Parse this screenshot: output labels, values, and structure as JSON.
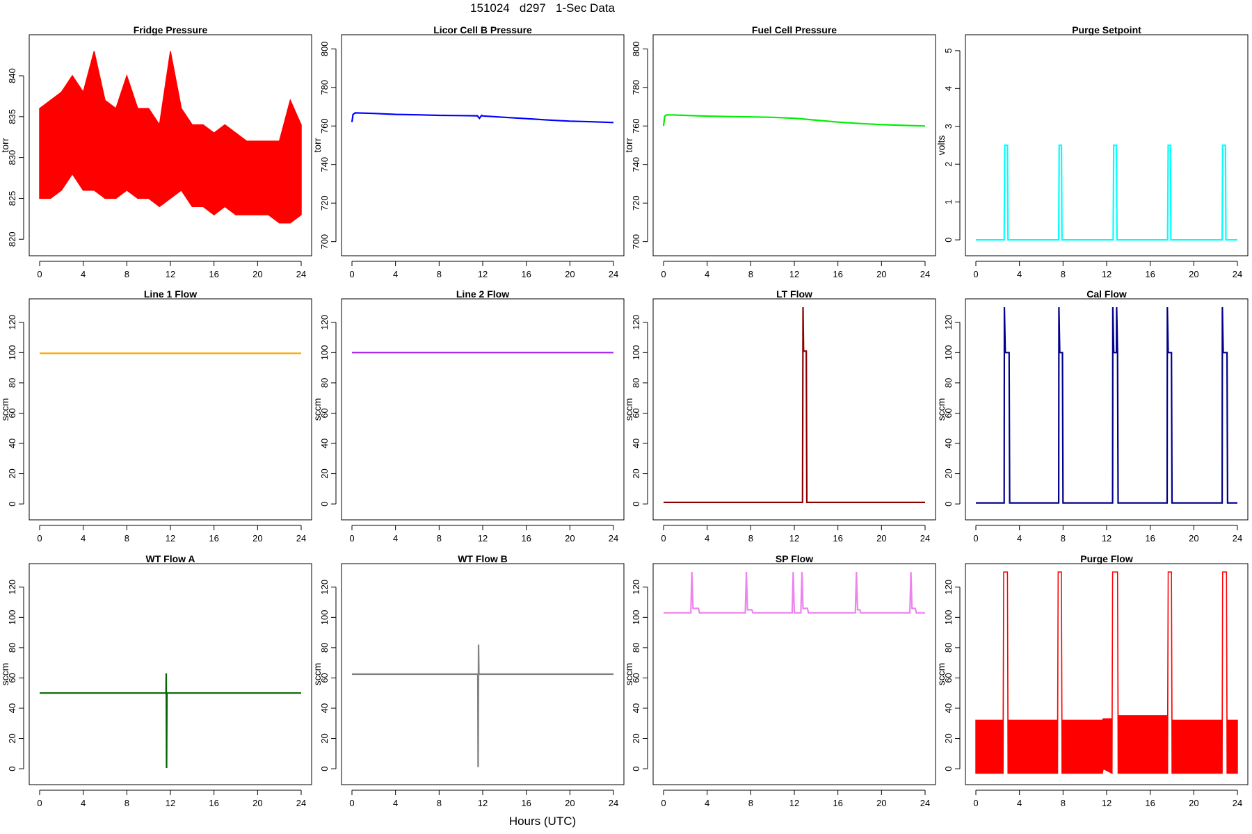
{
  "page": {
    "title": "151024   d297   1-Sec Data",
    "xlabel": "Hours (UTC)"
  },
  "chart_data": [
    {
      "type": "line",
      "title": "Fridge Pressure",
      "ylabel": "torr",
      "color": "#ff0000",
      "xlim": [
        0,
        24
      ],
      "ylim": [
        819,
        844
      ],
      "xticks": [
        0,
        4,
        8,
        12,
        16,
        20,
        24
      ],
      "yticks": [
        820,
        825,
        830,
        835,
        840
      ],
      "series": [
        {
          "x": [
            0,
            1,
            2,
            3,
            4,
            5,
            6,
            7,
            8,
            9,
            10,
            11,
            12,
            13,
            14,
            15,
            16,
            17,
            18,
            19,
            20,
            21,
            22,
            23,
            24
          ],
          "low": [
            825,
            825,
            826,
            828,
            826,
            826,
            825,
            825,
            826,
            825,
            825,
            824,
            825,
            826,
            824,
            824,
            823,
            824,
            823,
            823,
            823,
            823,
            822,
            822,
            823
          ],
          "high": [
            836,
            837,
            838,
            840,
            838,
            843,
            837,
            836,
            840,
            836,
            836,
            834,
            843,
            836,
            834,
            834,
            833,
            834,
            833,
            832,
            832,
            832,
            832,
            837,
            834
          ]
        }
      ]
    },
    {
      "type": "line",
      "title": "Licor Cell B Pressure",
      "ylabel": "torr",
      "color": "#0000ff",
      "xlim": [
        0,
        24
      ],
      "ylim": [
        697,
        803
      ],
      "xticks": [
        0,
        4,
        8,
        12,
        16,
        20,
        24
      ],
      "yticks": [
        700,
        720,
        740,
        760,
        780,
        800
      ],
      "series": [
        {
          "x": [
            0,
            0.1,
            0.3,
            2,
            4,
            6,
            8,
            10,
            11.5,
            11.7,
            11.9,
            12,
            14,
            16,
            18,
            20,
            22,
            24
          ],
          "y": [
            762,
            766,
            766.8,
            766.5,
            766,
            765.8,
            765.5,
            765.4,
            765.3,
            764,
            765.5,
            765.2,
            764.5,
            763.8,
            763.1,
            762.5,
            762.2,
            761.8
          ]
        }
      ]
    },
    {
      "type": "line",
      "title": "Fuel Cell Pressure",
      "ylabel": "torr",
      "color": "#00ee00",
      "xlim": [
        0,
        24
      ],
      "ylim": [
        697,
        803
      ],
      "xticks": [
        0,
        4,
        8,
        12,
        16,
        20,
        24
      ],
      "yticks": [
        700,
        720,
        740,
        760,
        780,
        800
      ],
      "series": [
        {
          "x": [
            0,
            0.1,
            0.3,
            2,
            4,
            6,
            8,
            10,
            12,
            14,
            16,
            18,
            20,
            22,
            24
          ],
          "y": [
            760,
            765,
            765.8,
            765.5,
            765.1,
            764.9,
            764.7,
            764.5,
            764,
            763,
            762,
            761.3,
            760.7,
            760.3,
            760
          ]
        }
      ]
    },
    {
      "type": "line",
      "title": "Purge Setpoint",
      "ylabel": "volts",
      "color": "#00ffff",
      "xlim": [
        0,
        24
      ],
      "ylim": [
        -0.2,
        5.2
      ],
      "xticks": [
        0,
        4,
        8,
        12,
        16,
        20,
        24
      ],
      "yticks": [
        0,
        1,
        2,
        3,
        4,
        5
      ],
      "series": [
        {
          "x": [
            0,
            2.6,
            2.65,
            2.9,
            2.95,
            7.6,
            7.65,
            7.85,
            7.9,
            12.6,
            12.65,
            12.9,
            12.95,
            17.6,
            17.65,
            17.85,
            17.9,
            22.6,
            22.65,
            22.9,
            22.95,
            24
          ],
          "y": [
            0,
            0,
            2.5,
            2.5,
            0,
            0,
            2.5,
            2.5,
            0,
            0,
            2.5,
            2.5,
            0,
            0,
            2.5,
            2.5,
            0,
            0,
            2.5,
            2.5,
            0,
            0
          ]
        }
      ]
    },
    {
      "type": "line",
      "title": "Line 1 Flow",
      "ylabel": "sccm",
      "color": "#ffa500",
      "xlim": [
        0,
        24
      ],
      "ylim": [
        -5,
        130
      ],
      "xticks": [
        0,
        4,
        8,
        12,
        16,
        20,
        24
      ],
      "yticks": [
        0,
        20,
        40,
        60,
        80,
        100,
        120
      ],
      "series": [
        {
          "x": [
            0,
            24
          ],
          "y": [
            99.5,
            99.5
          ]
        }
      ]
    },
    {
      "type": "line",
      "title": "Line 2 Flow",
      "ylabel": "sccm",
      "color": "#a020f0",
      "xlim": [
        0,
        24
      ],
      "ylim": [
        -5,
        130
      ],
      "xticks": [
        0,
        4,
        8,
        12,
        16,
        20,
        24
      ],
      "yticks": [
        0,
        20,
        40,
        60,
        80,
        100,
        120
      ],
      "series": [
        {
          "x": [
            0,
            24
          ],
          "y": [
            100,
            100
          ]
        }
      ]
    },
    {
      "type": "line",
      "title": "LT Flow",
      "ylabel": "sccm",
      "color": "#8b0000",
      "xlim": [
        0,
        24
      ],
      "ylim": [
        -5,
        130
      ],
      "xticks": [
        0,
        4,
        8,
        12,
        16,
        20,
        24
      ],
      "yticks": [
        0,
        20,
        40,
        60,
        80,
        100,
        120
      ],
      "series": [
        {
          "x": [
            0,
            12.75,
            12.8,
            12.85,
            13.1,
            13.15,
            24
          ],
          "y": [
            1,
            1,
            130,
            101,
            101,
            1,
            1
          ]
        }
      ]
    },
    {
      "type": "line",
      "title": "Cal Flow",
      "ylabel": "sccm",
      "color": "#00008b",
      "xlim": [
        0,
        24
      ],
      "ylim": [
        -5,
        130
      ],
      "xticks": [
        0,
        4,
        8,
        12,
        16,
        20,
        24
      ],
      "yticks": [
        0,
        20,
        40,
        60,
        80,
        100,
        120
      ],
      "series": [
        {
          "x": [
            0,
            2.6,
            2.62,
            2.7,
            3.05,
            3.1,
            7.6,
            7.62,
            7.7,
            7.95,
            8.0,
            12.55,
            12.57,
            12.65,
            12.9,
            12.92,
            13.0,
            13.05,
            17.55,
            17.57,
            17.65,
            17.95,
            18.0,
            22.6,
            22.62,
            22.7,
            23.05,
            23.1,
            24
          ],
          "y": [
            0.7,
            0.7,
            130,
            100,
            100,
            0.7,
            0.7,
            130,
            100,
            100,
            0.7,
            0.7,
            130,
            100,
            100,
            130,
            100,
            0.7,
            0.7,
            130,
            100,
            100,
            0.7,
            0.7,
            130,
            100,
            100,
            0.7,
            0.7
          ]
        }
      ]
    },
    {
      "type": "line",
      "title": "WT Flow A",
      "ylabel": "sccm",
      "color": "#006400",
      "xlim": [
        0,
        24
      ],
      "ylim": [
        -5,
        130
      ],
      "xticks": [
        0,
        4,
        8,
        12,
        16,
        20,
        24
      ],
      "yticks": [
        0,
        20,
        40,
        60,
        80,
        100,
        120
      ],
      "series": [
        {
          "x": [
            0,
            11.6,
            11.62,
            11.65,
            11.68,
            24
          ],
          "y": [
            50,
            50,
            63,
            0.5,
            50,
            50
          ]
        }
      ]
    },
    {
      "type": "line",
      "title": "WT Flow B",
      "ylabel": "sccm",
      "color": "#808080",
      "xlim": [
        0,
        24
      ],
      "ylim": [
        -5,
        130
      ],
      "xticks": [
        0,
        4,
        8,
        12,
        16,
        20,
        24
      ],
      "yticks": [
        0,
        20,
        40,
        60,
        80,
        100,
        120
      ],
      "series": [
        {
          "x": [
            0,
            11.55,
            11.58,
            11.62,
            11.65,
            24
          ],
          "y": [
            62.5,
            62.5,
            1,
            82,
            62.5,
            62.5
          ]
        }
      ]
    },
    {
      "type": "line",
      "title": "SP Flow",
      "ylabel": "sccm",
      "color": "#ee82ee",
      "xlim": [
        0,
        24
      ],
      "ylim": [
        -5,
        130
      ],
      "xticks": [
        0,
        4,
        8,
        12,
        16,
        20,
        24
      ],
      "yticks": [
        0,
        20,
        40,
        60,
        80,
        100,
        120
      ],
      "series": [
        {
          "x": [
            0,
            2.5,
            2.6,
            2.7,
            3.2,
            3.3,
            7.5,
            7.6,
            7.7,
            8.1,
            8.2,
            11.8,
            11.9,
            12.0,
            12.6,
            12.7,
            12.8,
            13.2,
            13.3,
            17.6,
            17.7,
            17.8,
            18.0,
            18.1,
            22.6,
            22.7,
            22.8,
            23.1,
            23.2,
            24
          ],
          "y": [
            103,
            103,
            130,
            106,
            106,
            103,
            103,
            130,
            105,
            105,
            103,
            103,
            130,
            103,
            103,
            130,
            106,
            106,
            103,
            103,
            130,
            105,
            105,
            103,
            103,
            130,
            106,
            106,
            103,
            103
          ]
        }
      ]
    },
    {
      "type": "line",
      "title": "Purge Flow",
      "ylabel": "sccm",
      "color": "#ff0000",
      "xlim": [
        0,
        24
      ],
      "ylim": [
        -5,
        130
      ],
      "xticks": [
        0,
        4,
        8,
        12,
        16,
        20,
        24
      ],
      "yticks": [
        0,
        20,
        40,
        60,
        80,
        100,
        120
      ],
      "series": [
        {
          "x": [
            0,
            2.5,
            2.55,
            2.9,
            2.95,
            7.5,
            7.55,
            7.85,
            7.9,
            11.6,
            11.7,
            12.5,
            12.55,
            13.0,
            13.05,
            17.6,
            17.65,
            17.95,
            18.0,
            22.6,
            22.65,
            23.0,
            23.05,
            24
          ],
          "low": [
            -3,
            -3,
            130,
            130,
            -3,
            -3,
            130,
            130,
            -3,
            -3,
            0,
            -3,
            130,
            130,
            -3,
            -3,
            130,
            130,
            -3,
            -3,
            130,
            130,
            -3,
            -3
          ],
          "high": [
            32,
            32,
            130,
            130,
            32,
            32,
            130,
            130,
            32,
            32,
            33,
            33,
            130,
            130,
            35,
            35,
            130,
            130,
            32,
            32,
            130,
            130,
            32,
            32
          ]
        }
      ]
    }
  ]
}
